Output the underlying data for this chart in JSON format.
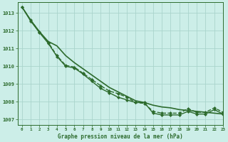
{
  "title": "Graphe pression niveau de la mer (hPa)",
  "background_color": "#cceee8",
  "grid_color": "#aad4cc",
  "line_color": "#2d6b2d",
  "xlim": [
    -0.5,
    23
  ],
  "ylim": [
    1006.7,
    1013.6
  ],
  "yticks": [
    1007,
    1008,
    1009,
    1010,
    1011,
    1012,
    1013
  ],
  "xticks": [
    0,
    1,
    2,
    3,
    4,
    5,
    6,
    7,
    8,
    9,
    10,
    11,
    12,
    13,
    14,
    15,
    16,
    17,
    18,
    19,
    20,
    21,
    22,
    23
  ],
  "series": [
    {
      "x": [
        0,
        1,
        2,
        3,
        4,
        5,
        6,
        7,
        8,
        9,
        10,
        11,
        12,
        13,
        14,
        15,
        16,
        17,
        18,
        19,
        20,
        21,
        22,
        23
      ],
      "y": [
        1013.35,
        1012.6,
        1011.95,
        1011.4,
        1011.15,
        1010.6,
        1010.2,
        1009.85,
        1009.5,
        1009.15,
        1008.8,
        1008.55,
        1008.3,
        1008.05,
        1007.95,
        1007.8,
        1007.7,
        1007.65,
        1007.55,
        1007.5,
        1007.45,
        1007.4,
        1007.35,
        1007.3
      ],
      "has_markers": false,
      "linewidth": 1.2,
      "linestyle": "-"
    },
    {
      "x": [
        0,
        1,
        2,
        3,
        4,
        5,
        6,
        7,
        8,
        9,
        10,
        11,
        12,
        13,
        14,
        15,
        16,
        17,
        18,
        19,
        20,
        21,
        22,
        23
      ],
      "y": [
        1013.35,
        1012.6,
        1011.95,
        1011.35,
        1010.6,
        1010.05,
        1009.95,
        1009.6,
        1009.25,
        1008.9,
        1008.6,
        1008.45,
        1008.25,
        1007.95,
        1007.9,
        1007.45,
        1007.35,
        1007.35,
        1007.35,
        1007.6,
        1007.4,
        1007.4,
        1007.65,
        1007.4
      ],
      "has_markers": true,
      "linewidth": 1.0,
      "linestyle": "--"
    },
    {
      "x": [
        0,
        1,
        2,
        3,
        4,
        5,
        6,
        7,
        8,
        9,
        10,
        11,
        12,
        13,
        14,
        15,
        16,
        17,
        18,
        19,
        20,
        21,
        22,
        23
      ],
      "y": [
        1013.35,
        1012.55,
        1011.9,
        1011.3,
        1010.55,
        1010.0,
        1009.9,
        1009.55,
        1009.15,
        1008.75,
        1008.5,
        1008.25,
        1008.1,
        1007.95,
        1007.95,
        1007.35,
        1007.25,
        1007.25,
        1007.25,
        1007.45,
        1007.3,
        1007.3,
        1007.55,
        1007.3
      ],
      "has_markers": true,
      "linewidth": 1.0,
      "linestyle": "-"
    }
  ]
}
